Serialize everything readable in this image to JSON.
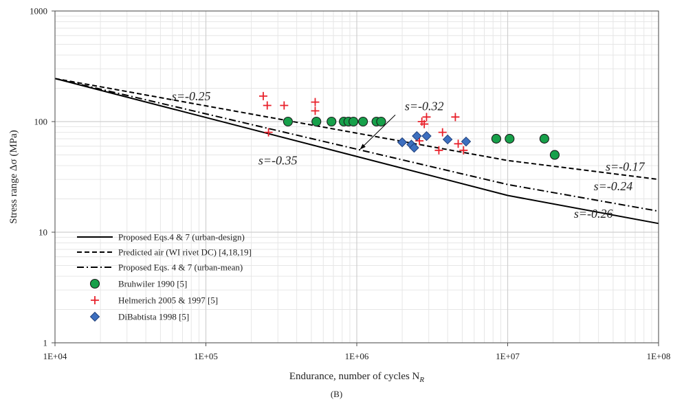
{
  "figure_label": "(B)",
  "colors": {
    "bruhwiler": "#17a04a",
    "helmerich": "#e8202a",
    "dibabtista": "#3d6fbf",
    "line": "#000000",
    "grid_major": "#cfcfcf",
    "grid_minor": "#e6e6e6"
  },
  "chart_data": {
    "type": "scatter",
    "scale": "log-log",
    "xlabel": "Endurance, number of cycles N",
    "xlabel_sub": "R",
    "ylabel": "Stress range Δσ (MPa)",
    "xlim": [
      10000,
      100000000
    ],
    "ylim": [
      1,
      1000
    ],
    "xticks": [
      10000,
      100000,
      1000000,
      10000000,
      100000000
    ],
    "xtick_labels": [
      "1E+04",
      "1E+05",
      "1E+06",
      "1E+07",
      "1E+08"
    ],
    "yticks": [
      1,
      10,
      100,
      1000
    ],
    "ytick_labels": [
      "1",
      "10",
      "100",
      "1000"
    ],
    "grid": true,
    "legend_position": "bottom-left",
    "lines": [
      {
        "name": "Proposed Eqs.4 & 7 (urban-design)",
        "style": "solid",
        "points": [
          [
            10000,
            245
          ],
          [
            10000000,
            21.5
          ],
          [
            100000000,
            12
          ]
        ]
      },
      {
        "name": "Predicted air (WI rivet DC) [4,18,19]",
        "style": "dashed",
        "points": [
          [
            10000,
            245
          ],
          [
            10000000,
            44.5
          ],
          [
            100000000,
            30
          ]
        ]
      },
      {
        "name": "Proposed Eqs. 4 & 7 (urban-mean)",
        "style": "dashdot",
        "points": [
          [
            10000,
            245
          ],
          [
            10000000,
            27
          ],
          [
            100000000,
            15.5
          ]
        ]
      }
    ],
    "series": [
      {
        "name": "Bruhwiler 1990 [5]",
        "marker": "circle",
        "points": [
          [
            350000,
            100
          ],
          [
            540000,
            100
          ],
          [
            680000,
            100
          ],
          [
            820000,
            100
          ],
          [
            880000,
            100
          ],
          [
            950000,
            100
          ],
          [
            1100000,
            100
          ],
          [
            1350000,
            100
          ],
          [
            1450000,
            100
          ],
          [
            8400000,
            70
          ],
          [
            10300000,
            70
          ],
          [
            17500000,
            70
          ],
          [
            20500000,
            50
          ]
        ]
      },
      {
        "name": "Helmerich 2005 & 1997 [5]",
        "marker": "plus",
        "points": [
          [
            240000,
            170
          ],
          [
            255000,
            140
          ],
          [
            260000,
            80
          ],
          [
            330000,
            140
          ],
          [
            530000,
            150
          ],
          [
            530000,
            125
          ],
          [
            2600000,
            67
          ],
          [
            2700000,
            100
          ],
          [
            2800000,
            95
          ],
          [
            2900000,
            110
          ],
          [
            3500000,
            55
          ],
          [
            3700000,
            80
          ],
          [
            4500000,
            110
          ],
          [
            4700000,
            63
          ],
          [
            5100000,
            55
          ]
        ]
      },
      {
        "name": "DiBabtista 1998 [5]",
        "marker": "diamond",
        "points": [
          [
            2000000,
            65
          ],
          [
            2300000,
            62
          ],
          [
            2400000,
            58
          ],
          [
            2500000,
            74
          ],
          [
            2900000,
            74
          ],
          [
            4000000,
            69
          ],
          [
            5300000,
            66
          ]
        ]
      }
    ],
    "annotations": [
      {
        "text": "s=-0.25",
        "at": [
          80000,
          156
        ]
      },
      {
        "text": "s=-0.32",
        "at": [
          2800000,
          127
        ]
      },
      {
        "text": "s=-0.35",
        "at": [
          300000,
          41
        ]
      },
      {
        "text": "s=-0.17",
        "at": [
          60000000,
          36
        ]
      },
      {
        "text": "s=-0.24",
        "at": [
          50000000,
          24
        ]
      },
      {
        "text": "s=-0.26",
        "at": [
          37000000,
          13.5
        ]
      }
    ],
    "arrow": {
      "from": [
        1800000,
        115
      ],
      "to": [
        1050000,
        56
      ]
    }
  }
}
